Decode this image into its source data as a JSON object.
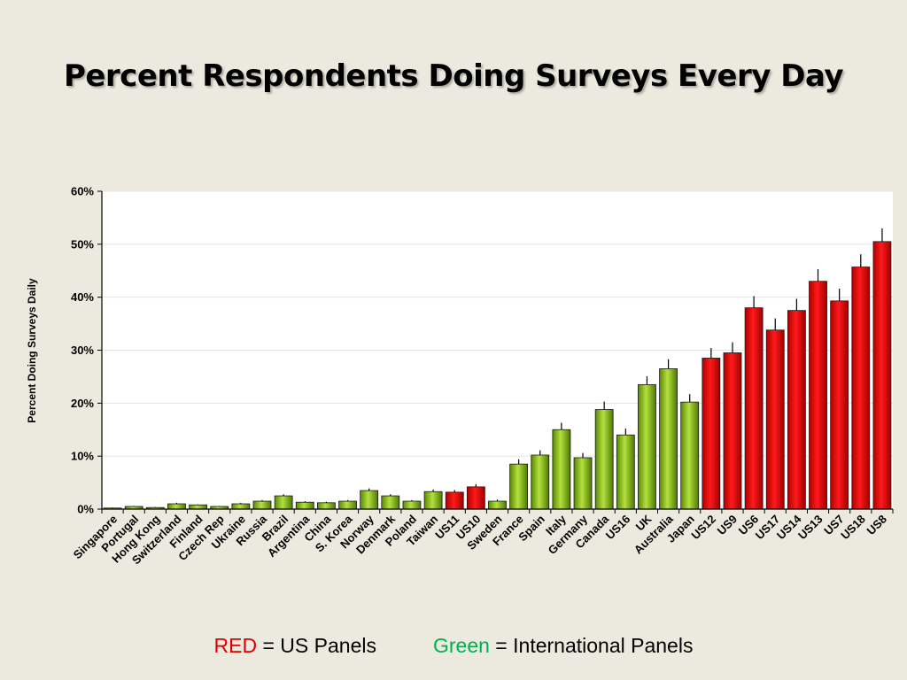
{
  "chart_data": {
    "type": "bar",
    "title": "Percent Respondents Doing Surveys Every Day",
    "ylabel": "Percent Doing Surveys Daily",
    "xlabel": "",
    "ylim": [
      0,
      60
    ],
    "yticks": [
      "0%",
      "10%",
      "20%",
      "30%",
      "40%",
      "50%",
      "60%"
    ],
    "grid": true,
    "error_bars": true,
    "categories": [
      "Singapore",
      "Portugal",
      "Hong Kong",
      "Switzerland",
      "Finland",
      "Czech Rep",
      "Ukraine",
      "Russia",
      "Brazil",
      "Argentina",
      "China",
      "S. Korea",
      "Norway",
      "Denmark",
      "Poland",
      "Taiwan",
      "US11",
      "US10",
      "Sweden",
      "France",
      "Spain",
      "Italy",
      "Germany",
      "Canada",
      "US16",
      "UK",
      "Australia",
      "Japan",
      "US12",
      "US9",
      "US6",
      "US17",
      "US14",
      "US13",
      "US7",
      "US18",
      "US8"
    ],
    "values": [
      0.2,
      0.5,
      0.3,
      1.0,
      0.8,
      0.5,
      1.0,
      1.5,
      2.5,
      1.3,
      1.2,
      1.5,
      3.5,
      2.5,
      1.5,
      3.3,
      3.2,
      4.2,
      1.5,
      8.5,
      10.2,
      15.0,
      9.7,
      18.8,
      14.0,
      23.5,
      26.5,
      20.2,
      28.5,
      29.5,
      38.0,
      33.8,
      37.5,
      43.0,
      39.3,
      45.7,
      50.5
    ],
    "errors": [
      0.1,
      0.1,
      0.1,
      0.2,
      0.1,
      0.1,
      0.2,
      0.2,
      0.3,
      0.2,
      0.2,
      0.2,
      0.4,
      0.3,
      0.2,
      0.4,
      0.4,
      0.5,
      0.3,
      0.9,
      0.9,
      1.3,
      0.9,
      1.5,
      1.2,
      1.6,
      1.8,
      1.5,
      1.9,
      2.0,
      2.2,
      2.2,
      2.2,
      2.3,
      2.3,
      2.4,
      2.5
    ],
    "groups": [
      "intl",
      "intl",
      "intl",
      "intl",
      "intl",
      "intl",
      "intl",
      "intl",
      "intl",
      "intl",
      "intl",
      "intl",
      "intl",
      "intl",
      "intl",
      "intl",
      "us",
      "us",
      "intl",
      "intl",
      "intl",
      "intl",
      "intl",
      "intl",
      "intl",
      "intl",
      "intl",
      "intl",
      "us",
      "us",
      "us",
      "us",
      "us",
      "us",
      "us",
      "us",
      "us"
    ],
    "colors": {
      "us": "#E00000",
      "intl": "#7FB400"
    }
  },
  "legend": {
    "red_word": "RED",
    "red_rest": " = US Panels",
    "green_word": "Green",
    "green_rest": " = International Panels",
    "red_color": "#E00000",
    "green_color": "#00B050"
  }
}
